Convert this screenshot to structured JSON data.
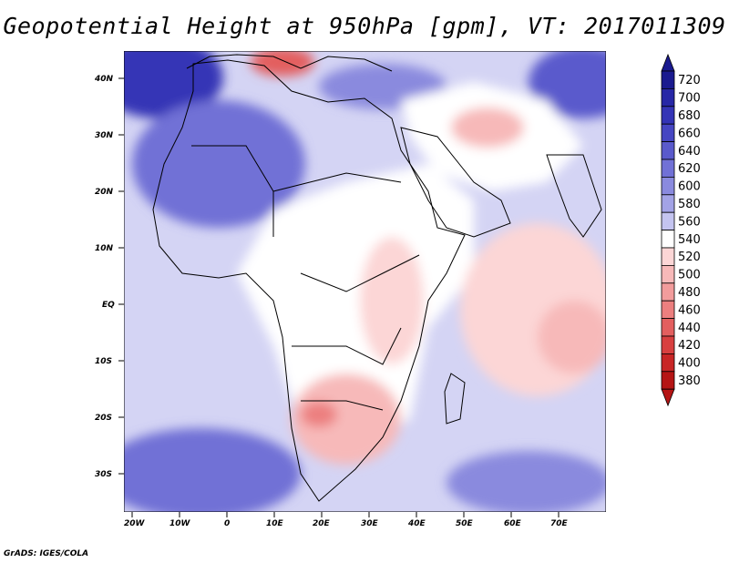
{
  "title": "Geopotential Height at 950hPa [gpm], VT: 2017011309",
  "footer": "GrADS: IGES/COLA",
  "axes": {
    "lat_labels": [
      "40N",
      "30N",
      "20N",
      "10N",
      "EQ",
      "10S",
      "20S",
      "30S"
    ],
    "lon_labels": [
      "20W",
      "10W",
      "0",
      "10E",
      "20E",
      "30E",
      "40E",
      "50E",
      "60E",
      "70E"
    ]
  },
  "colorbar": {
    "levels": [
      "720",
      "700",
      "680",
      "660",
      "640",
      "620",
      "600",
      "580",
      "560",
      "540",
      "520",
      "500",
      "480",
      "460",
      "440",
      "420",
      "400",
      "380"
    ],
    "colors": [
      "#1a1a8f",
      "#2727a6",
      "#3434b6",
      "#4646c2",
      "#5a5acc",
      "#7171d6",
      "#8a8ade",
      "#a3a3e6",
      "#c4c4f0",
      "#ffffff",
      "#fcd6d6",
      "#f7b9b9",
      "#f29c9c",
      "#ec7f7f",
      "#e35f5f",
      "#d84040",
      "#c82626",
      "#b51515"
    ]
  },
  "map": {
    "background_color": "#d4d4f4",
    "land_color": "#ffffff",
    "blue_high_color": "#5a5acc",
    "blue_mid_color": "#8a8ade",
    "pink_color": "#f7b9b9",
    "red_color": "#e35f5f"
  }
}
